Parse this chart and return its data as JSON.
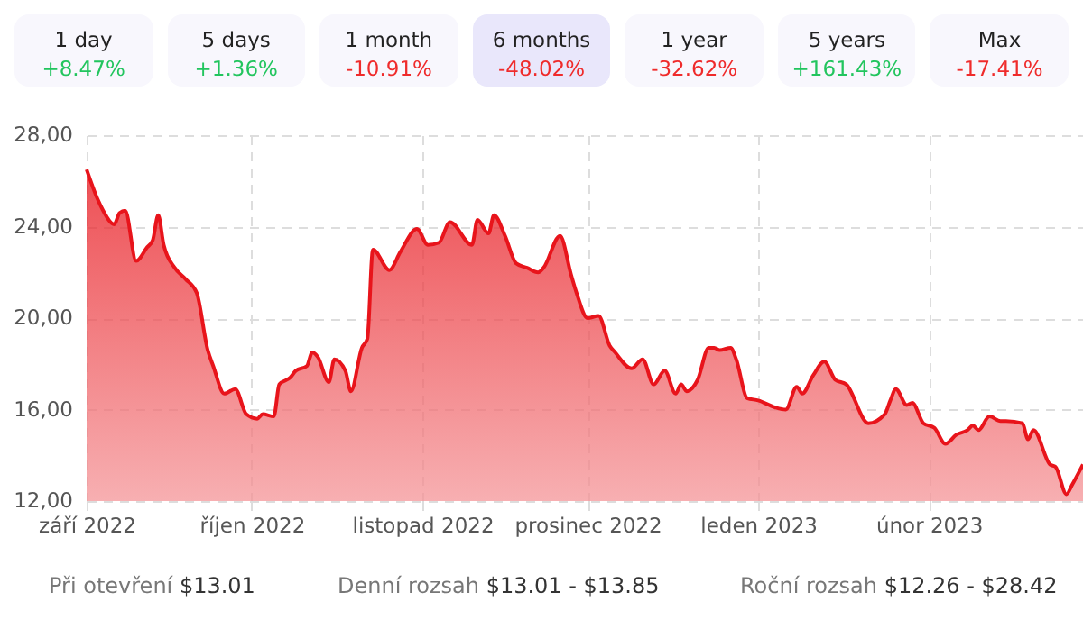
{
  "chart_data": {
    "type": "area",
    "x": [
      "2022-09-01",
      "2022-09-03",
      "2022-09-04",
      "2022-09-06",
      "2022-09-07",
      "2022-09-08",
      "2022-09-10",
      "2022-09-12",
      "2022-09-13",
      "2022-09-14",
      "2022-09-15",
      "2022-09-17",
      "2022-09-19",
      "2022-09-21",
      "2022-09-23",
      "2022-09-24",
      "2022-09-26",
      "2022-09-28",
      "2022-09-30",
      "2022-10-02",
      "2022-10-03",
      "2022-10-05",
      "2022-10-06",
      "2022-10-08",
      "2022-10-09",
      "2022-10-11",
      "2022-10-12",
      "2022-10-13",
      "2022-10-15",
      "2022-10-16",
      "2022-10-18",
      "2022-10-19",
      "2022-10-21",
      "2022-10-22",
      "2022-10-23",
      "2022-10-26",
      "2022-10-28",
      "2022-10-31",
      "2022-11-02",
      "2022-11-04",
      "2022-11-06",
      "2022-11-10",
      "2022-11-11",
      "2022-11-13",
      "2022-11-14",
      "2022-11-16",
      "2022-11-18",
      "2022-11-20",
      "2022-11-22",
      "2022-11-23",
      "2022-11-26",
      "2022-11-28",
      "2022-11-29",
      "2022-12-01",
      "2022-12-03",
      "2022-12-05",
      "2022-12-06",
      "2022-12-09",
      "2022-12-11",
      "2022-12-13",
      "2022-12-15",
      "2022-12-17",
      "2022-12-18",
      "2022-12-19",
      "2022-12-21",
      "2022-12-23",
      "2022-12-24",
      "2022-12-25",
      "2022-12-27",
      "2022-12-28",
      "2022-12-30",
      "2023-01-01",
      "2023-01-04",
      "2023-01-06",
      "2023-01-08",
      "2023-01-09",
      "2023-01-11",
      "2023-01-13",
      "2023-01-15",
      "2023-01-17",
      "2023-01-21",
      "2023-01-24",
      "2023-01-25",
      "2023-01-26",
      "2023-01-28",
      "2023-01-29",
      "2023-01-31",
      "2023-02-02",
      "2023-02-04",
      "2023-02-06",
      "2023-02-08",
      "2023-02-09",
      "2023-02-10",
      "2023-02-12",
      "2023-02-14",
      "2023-02-15",
      "2023-02-18",
      "2023-02-19",
      "2023-02-20",
      "2023-02-23",
      "2023-02-24",
      "2023-02-26",
      "2023-02-27",
      "2023-03-01"
    ],
    "series": [
      {
        "color": "#e8141b",
        "values": [
          26.5,
          25.2,
          24.7,
          24.1,
          24.6,
          24.7,
          22.5,
          23.1,
          23.4,
          24.5,
          23.2,
          22.2,
          21.7,
          21.1,
          18.6,
          17.9,
          16.7,
          16.9,
          15.8,
          15.6,
          15.8,
          15.7,
          17.1,
          17.4,
          17.7,
          17.9,
          18.5,
          18.3,
          17.2,
          18.2,
          17.7,
          16.8,
          18.7,
          19.1,
          23.0,
          22.1,
          22.9,
          23.9,
          23.2,
          23.3,
          24.2,
          23.2,
          24.3,
          23.7,
          24.5,
          23.6,
          22.4,
          22.2,
          22.0,
          22.2,
          23.6,
          21.9,
          21.1,
          20.0,
          20.1,
          18.8,
          18.5,
          17.8,
          18.2,
          17.1,
          17.7,
          16.7,
          17.1,
          16.8,
          17.3,
          18.7,
          18.7,
          18.6,
          18.7,
          18.2,
          16.5,
          16.4,
          16.1,
          16.0,
          17.0,
          16.7,
          17.5,
          18.1,
          17.3,
          17.1,
          15.4,
          15.8,
          16.4,
          16.9,
          16.2,
          16.3,
          15.4,
          15.2,
          14.5,
          14.9,
          15.1,
          15.3,
          15.1,
          15.7,
          15.5,
          15.5,
          15.4,
          14.7,
          15.1,
          13.6,
          13.5,
          12.3,
          12.7,
          13.6
        ]
      }
    ],
    "xlim": [
      "2022-09-01",
      "2023-03-01"
    ],
    "xticks": [
      {
        "value": "2022-09-01",
        "label": "září 2022"
      },
      {
        "value": "2022-10-01",
        "label": "říjen 2022"
      },
      {
        "value": "2022-11-01",
        "label": "listopad 2022"
      },
      {
        "value": "2022-12-01",
        "label": "prosinec 2022"
      },
      {
        "value": "2023-01-01",
        "label": "leden 2023"
      },
      {
        "value": "2023-02-01",
        "label": "únor 2023"
      }
    ],
    "ylim": [
      12,
      28
    ],
    "yticks": [
      {
        "value": 12,
        "label": "12,00"
      },
      {
        "value": 16,
        "label": "16,00"
      },
      {
        "value": 20,
        "label": "20,00"
      },
      {
        "value": 24,
        "label": "24,00"
      },
      {
        "value": 28,
        "label": "28,00"
      }
    ],
    "grid": true,
    "annotations": [
      "1 day",
      "+8.47%",
      "5 days",
      "+1.36%",
      "1 month",
      "-10.91%",
      "6 months",
      "-48.02%",
      "1 year",
      "-32.62%",
      "5 years",
      "+161.43%",
      "Max",
      "-17.41%",
      "Při otevření",
      "$13.01",
      "Denní rozsah",
      "$13.01 - $13.85",
      "Roční rozsah",
      "$12.26 - $28.42"
    ]
  }
}
